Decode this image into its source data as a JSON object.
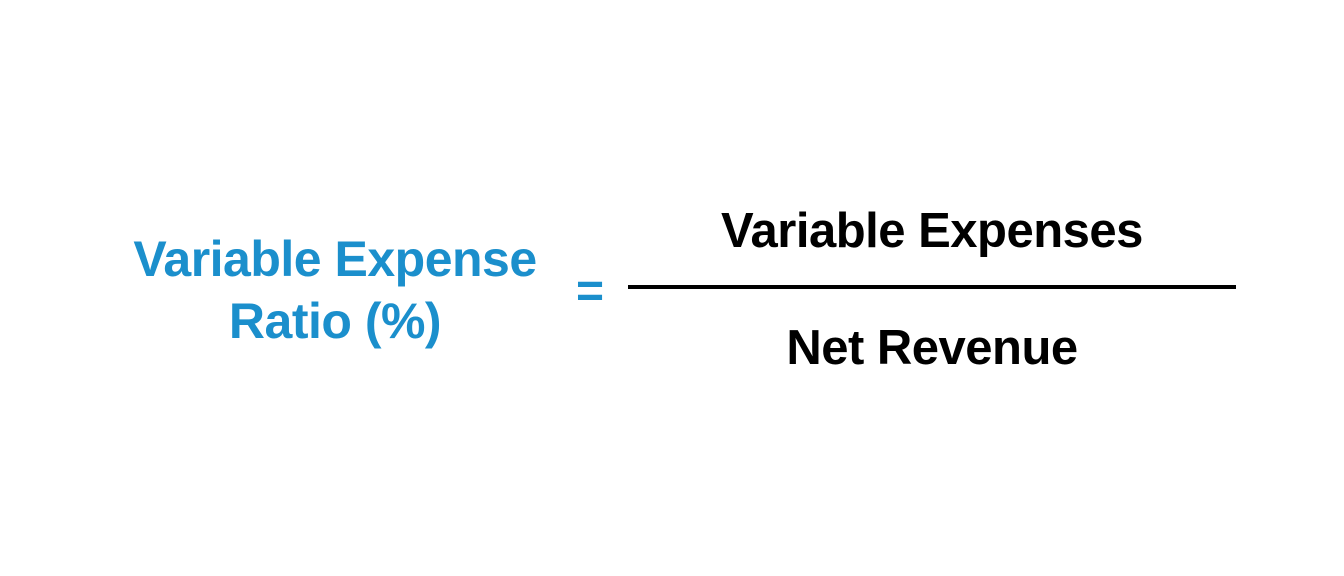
{
  "formula": {
    "lhs_line1": "Variable Expense",
    "lhs_line2": "Ratio (%)",
    "operator": "=",
    "numerator": "Variable Expenses",
    "denominator": "Net Revenue"
  },
  "colors": {
    "accent": "#1b8fcc",
    "text": "#000000",
    "background": "#ffffff"
  }
}
